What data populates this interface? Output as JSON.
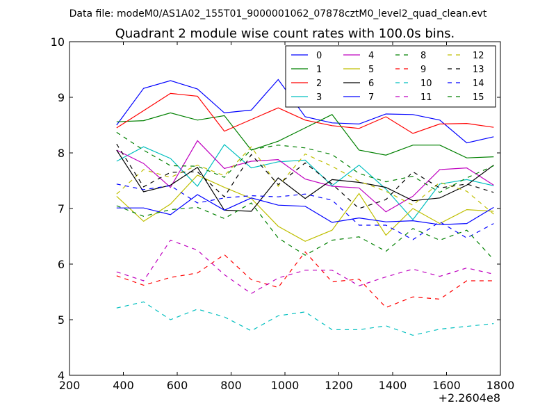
{
  "chart_data": {
    "type": "line",
    "supertitle": "Data file: modeM0/AS1A02_155T01_9000001062_07878cztM0_level2_quad_clean.evt",
    "title": "Quadrant 2 module wise count rates with 100.0s bins.",
    "xlabel": "",
    "ylabel": "",
    "x_offset_label": "+2.2604e8",
    "xlim": [
      200,
      1800
    ],
    "ylim": [
      4,
      10
    ],
    "x_ticks": [
      200,
      400,
      600,
      800,
      1000,
      1200,
      1400,
      1600,
      1800
    ],
    "y_ticks": [
      4,
      5,
      6,
      7,
      8,
      9,
      10
    ],
    "grid": false,
    "legend_position": "top-right",
    "x": [
      375,
      475,
      575,
      675,
      775,
      875,
      975,
      1075,
      1175,
      1275,
      1375,
      1475,
      1575,
      1675,
      1775
    ],
    "series": [
      {
        "name": "0",
        "color": "#0000ff",
        "dash": "solid",
        "values": [
          8.5,
          9.16,
          9.3,
          9.15,
          8.72,
          8.77,
          9.32,
          8.65,
          8.54,
          8.52,
          8.7,
          8.69,
          8.59,
          8.18,
          8.29
        ]
      },
      {
        "name": "1",
        "color": "#008000",
        "dash": "solid",
        "values": [
          8.56,
          8.58,
          8.72,
          8.59,
          8.67,
          8.05,
          8.21,
          8.45,
          8.69,
          8.05,
          7.96,
          8.14,
          8.14,
          7.91,
          7.93
        ]
      },
      {
        "name": "2",
        "color": "#ff0000",
        "dash": "solid",
        "values": [
          8.45,
          8.76,
          9.07,
          9.02,
          8.39,
          8.6,
          8.81,
          8.59,
          8.49,
          8.44,
          8.65,
          8.35,
          8.52,
          8.53,
          8.46
        ]
      },
      {
        "name": "3",
        "color": "#00bfbf",
        "dash": "solid",
        "values": [
          7.85,
          8.11,
          7.9,
          7.4,
          8.15,
          7.73,
          7.84,
          7.87,
          7.41,
          7.78,
          7.35,
          6.8,
          7.44,
          7.52,
          7.41
        ]
      },
      {
        "name": "4",
        "color": "#bf00bf",
        "dash": "solid",
        "values": [
          8.05,
          7.81,
          7.38,
          8.22,
          7.72,
          7.85,
          7.88,
          7.53,
          7.4,
          7.37,
          6.94,
          7.22,
          7.7,
          7.73,
          7.42
        ]
      },
      {
        "name": "5",
        "color": "#bfbf00",
        "dash": "solid",
        "values": [
          7.22,
          6.77,
          7.08,
          7.6,
          7.38,
          7.18,
          6.68,
          6.41,
          6.61,
          7.27,
          6.52,
          7.0,
          6.73,
          6.98,
          6.95
        ]
      },
      {
        "name": "6",
        "color": "#000000",
        "dash": "solid",
        "values": [
          8.05,
          7.3,
          7.42,
          7.74,
          6.97,
          6.95,
          7.55,
          7.18,
          7.52,
          7.47,
          7.38,
          7.14,
          7.19,
          7.42,
          7.78
        ]
      },
      {
        "name": "7",
        "color": "#0000ff",
        "dash": "solid",
        "values": [
          7.01,
          7.01,
          6.89,
          7.25,
          6.97,
          7.19,
          7.06,
          7.04,
          6.75,
          6.83,
          6.76,
          6.78,
          6.71,
          6.73,
          7.02
        ]
      },
      {
        "name": "8",
        "color": "#008000",
        "dash": "dashed",
        "values": [
          8.37,
          8.05,
          7.77,
          7.76,
          7.56,
          8.06,
          8.14,
          8.09,
          7.97,
          7.63,
          7.48,
          7.58,
          7.29,
          7.55,
          7.77
        ]
      },
      {
        "name": "9",
        "color": "#ff0000",
        "dash": "dashed",
        "values": [
          5.79,
          5.62,
          5.76,
          5.84,
          6.17,
          5.72,
          5.58,
          6.22,
          5.68,
          5.73,
          5.22,
          5.41,
          5.37,
          5.7,
          5.7
        ]
      },
      {
        "name": "10",
        "color": "#00bfbf",
        "dash": "dashed",
        "values": [
          5.21,
          5.32,
          5.0,
          5.19,
          5.05,
          4.8,
          5.07,
          5.14,
          4.82,
          4.82,
          4.89,
          4.72,
          4.83,
          4.88,
          4.93
        ]
      },
      {
        "name": "11",
        "color": "#bf00bf",
        "dash": "dashed",
        "values": [
          5.86,
          5.7,
          6.43,
          6.25,
          5.81,
          5.47,
          5.75,
          5.89,
          5.89,
          5.61,
          5.77,
          5.91,
          5.78,
          5.93,
          5.82
        ]
      },
      {
        "name": "12",
        "color": "#bfbf00",
        "dash": "dashed",
        "values": [
          7.26,
          7.7,
          7.56,
          7.78,
          7.59,
          8.11,
          7.4,
          7.98,
          7.76,
          7.49,
          7.31,
          7.06,
          7.47,
          7.31,
          6.9
        ]
      },
      {
        "name": "13",
        "color": "#000000",
        "dash": "dashed",
        "values": [
          8.16,
          7.39,
          7.65,
          7.66,
          7.21,
          7.97,
          7.43,
          7.82,
          7.44,
          7.0,
          7.16,
          7.66,
          7.37,
          7.44,
          7.29
        ]
      },
      {
        "name": "14",
        "color": "#0000ff",
        "dash": "dashed",
        "values": [
          7.44,
          7.34,
          7.41,
          7.1,
          7.19,
          7.23,
          7.21,
          7.26,
          7.15,
          6.7,
          6.7,
          6.44,
          6.76,
          6.47,
          6.73
        ]
      },
      {
        "name": "15",
        "color": "#008000",
        "dash": "dashed",
        "values": [
          7.05,
          6.86,
          6.98,
          7.02,
          6.82,
          7.1,
          6.47,
          6.16,
          6.43,
          6.49,
          6.23,
          6.64,
          6.43,
          6.61,
          6.08
        ]
      }
    ]
  }
}
